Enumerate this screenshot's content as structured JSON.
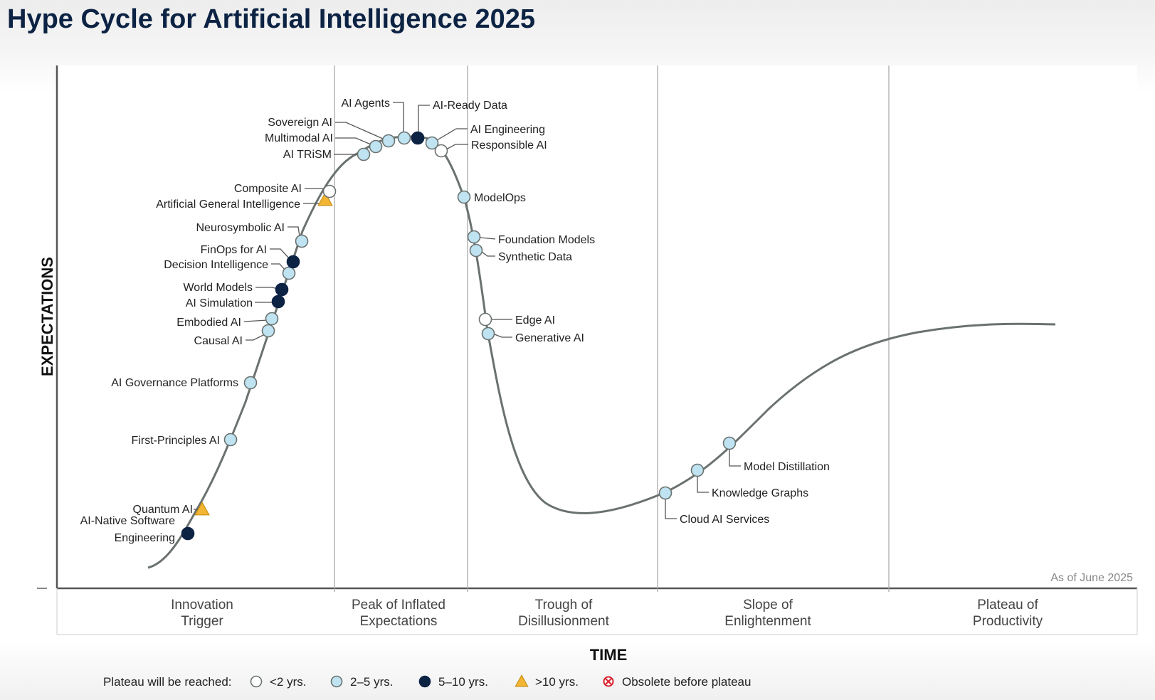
{
  "title": "Hype Cycle for Artificial Intelligence 2025",
  "as_of": "As of June 2025",
  "legend": {
    "prefix": "Plateau will be reached:",
    "items": [
      {
        "key": "lt2",
        "label": "<2 yrs.",
        "shape": "circle",
        "color": "#ffffff"
      },
      {
        "key": "2to5",
        "label": "2–5 yrs.",
        "shape": "circle",
        "color": "#bfe3f1"
      },
      {
        "key": "5to10",
        "label": "5–10 yrs.",
        "shape": "circle",
        "color": "#0d2344"
      },
      {
        "key": "gt10",
        "label": ">10 yrs.",
        "shape": "triangle",
        "color": "#f2b634"
      },
      {
        "key": "obsolete",
        "label": "Obsolete before plateau",
        "shape": "x-circle",
        "color": "#d9232d"
      }
    ]
  },
  "chart_data": {
    "type": "scatter",
    "title": "Hype Cycle for Artificial Intelligence 2025",
    "xlabel": "TIME",
    "ylabel": "EXPECTATIONS",
    "phases": [
      "Innovation Trigger",
      "Peak of Inflated Expectations",
      "Trough of Disillusionment",
      "Slope of Enlightenment",
      "Plateau of Productivity"
    ],
    "grid": false,
    "legend_position": "bottom",
    "points": [
      {
        "name": "AI-Native Software Engineering",
        "phase": "Innovation Trigger",
        "plateau": "5to10"
      },
      {
        "name": "Quantum AI",
        "phase": "Innovation Trigger",
        "plateau": "gt10"
      },
      {
        "name": "First-Principles AI",
        "phase": "Innovation Trigger",
        "plateau": "2to5"
      },
      {
        "name": "AI Governance Platforms",
        "phase": "Innovation Trigger",
        "plateau": "2to5"
      },
      {
        "name": "Causal AI",
        "phase": "Innovation Trigger",
        "plateau": "2to5"
      },
      {
        "name": "Embodied AI",
        "phase": "Innovation Trigger",
        "plateau": "2to5"
      },
      {
        "name": "AI Simulation",
        "phase": "Innovation Trigger",
        "plateau": "5to10"
      },
      {
        "name": "World Models",
        "phase": "Innovation Trigger",
        "plateau": "5to10"
      },
      {
        "name": "Decision Intelligence",
        "phase": "Innovation Trigger",
        "plateau": "2to5"
      },
      {
        "name": "FinOps for AI",
        "phase": "Innovation Trigger",
        "plateau": "5to10"
      },
      {
        "name": "Neurosymbolic AI",
        "phase": "Innovation Trigger",
        "plateau": "2to5"
      },
      {
        "name": "Artificial General Intelligence",
        "phase": "Innovation Trigger",
        "plateau": "gt10"
      },
      {
        "name": "Composite AI",
        "phase": "Innovation Trigger",
        "plateau": "lt2"
      },
      {
        "name": "AI TRiSM",
        "phase": "Peak of Inflated Expectations",
        "plateau": "2to5"
      },
      {
        "name": "Multimodal AI",
        "phase": "Peak of Inflated Expectations",
        "plateau": "2to5"
      },
      {
        "name": "Sovereign AI",
        "phase": "Peak of Inflated Expectations",
        "plateau": "2to5"
      },
      {
        "name": "AI Agents",
        "phase": "Peak of Inflated Expectations",
        "plateau": "2to5"
      },
      {
        "name": "AI-Ready Data",
        "phase": "Peak of Inflated Expectations",
        "plateau": "5to10"
      },
      {
        "name": "AI Engineering",
        "phase": "Peak of Inflated Expectations",
        "plateau": "2to5"
      },
      {
        "name": "Responsible AI",
        "phase": "Peak of Inflated Expectations",
        "plateau": "lt2"
      },
      {
        "name": "ModelOps",
        "phase": "Trough of Disillusionment",
        "plateau": "2to5"
      },
      {
        "name": "Foundation Models",
        "phase": "Trough of Disillusionment",
        "plateau": "2to5"
      },
      {
        "name": "Synthetic Data",
        "phase": "Trough of Disillusionment",
        "plateau": "2to5"
      },
      {
        "name": "Edge AI",
        "phase": "Trough of Disillusionment",
        "plateau": "lt2"
      },
      {
        "name": "Generative AI",
        "phase": "Trough of Disillusionment",
        "plateau": "2to5"
      },
      {
        "name": "Cloud AI Services",
        "phase": "Slope of Enlightenment",
        "plateau": "2to5"
      },
      {
        "name": "Knowledge Graphs",
        "phase": "Slope of Enlightenment",
        "plateau": "2to5"
      },
      {
        "name": "Model Distillation",
        "phase": "Slope of Enlightenment",
        "plateau": "2to5"
      }
    ]
  }
}
